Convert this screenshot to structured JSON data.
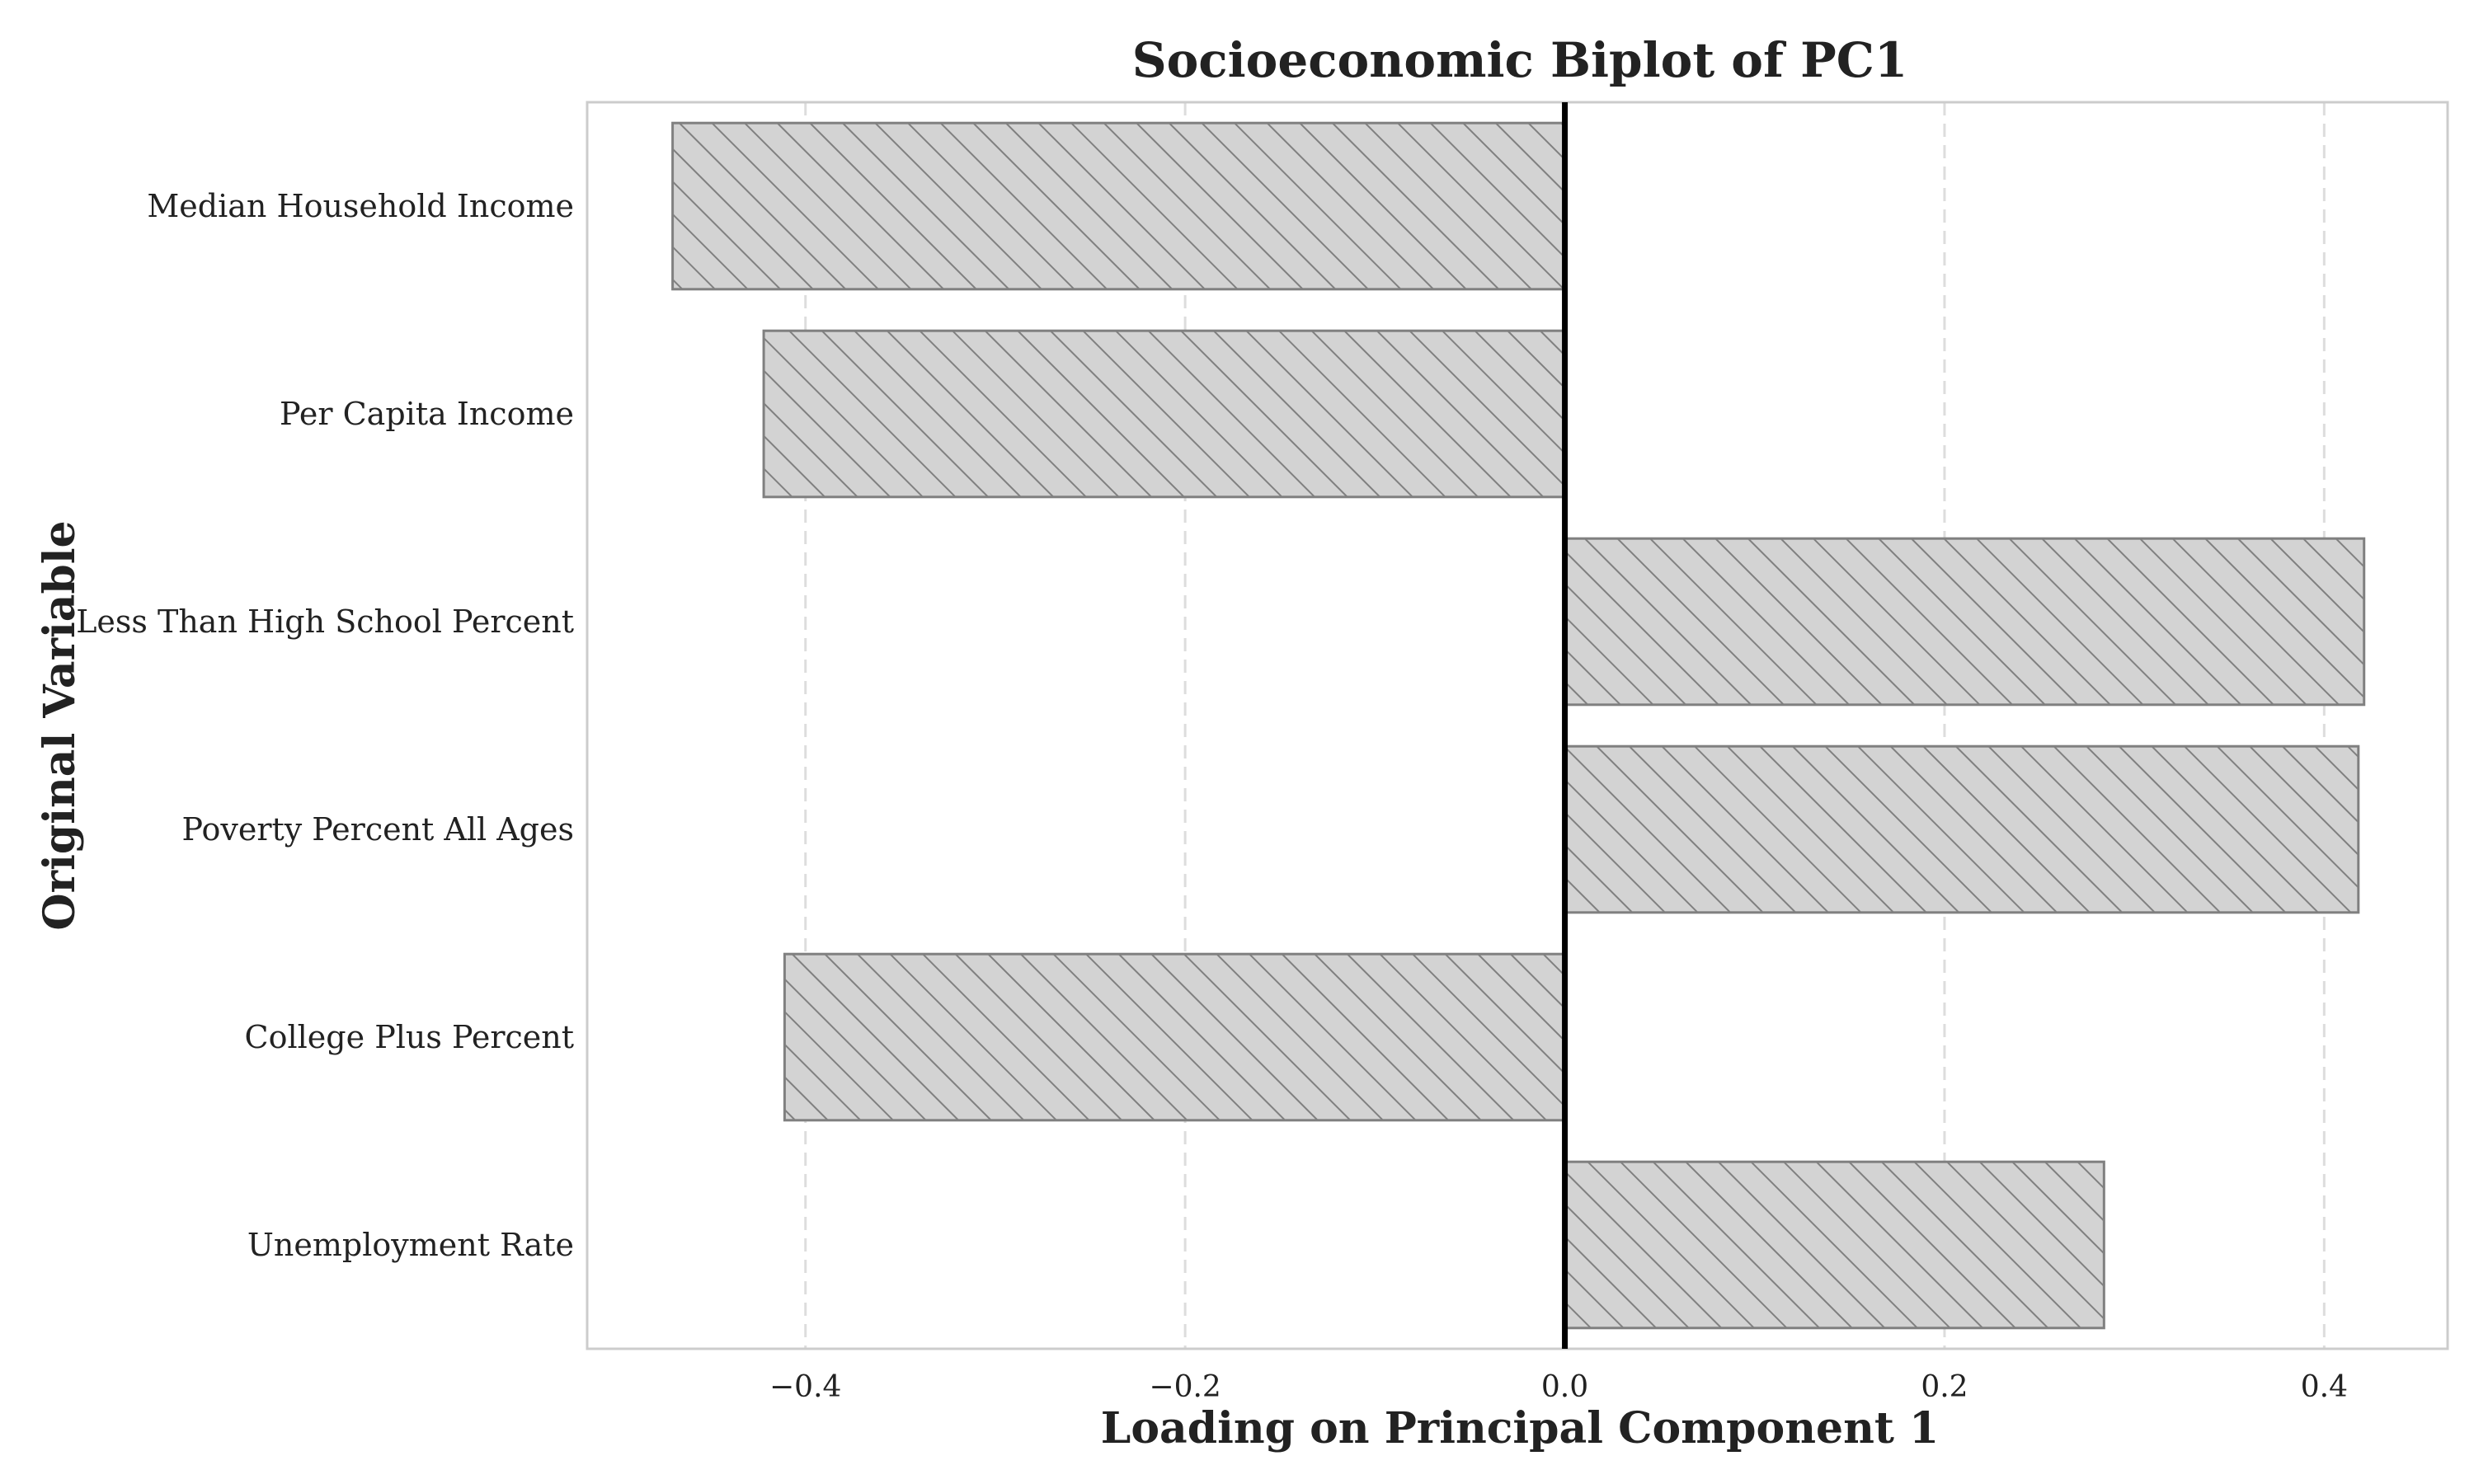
{
  "chart_data": {
    "type": "bar",
    "orientation": "horizontal",
    "title": "Socioeconomic Biplot of PC1",
    "xlabel": "Loading on Principal Component 1",
    "ylabel": "Original Variable",
    "categories": [
      "Median Household Income",
      "Per Capita Income",
      "Less Than High School Percent",
      "Poverty Percent All Ages",
      "College Plus Percent",
      "Unemployment Rate"
    ],
    "values": [
      -0.47,
      -0.422,
      0.421,
      0.418,
      -0.411,
      0.284
    ],
    "xlim": [
      -0.515,
      0.465
    ],
    "xticks": [
      -0.4,
      -0.2,
      0.0,
      0.2,
      0.4
    ],
    "xtick_labels": [
      "−0.4",
      "−0.2",
      "0.0",
      "0.2",
      "0.4"
    ],
    "grid": "x-dashed",
    "legend": "none",
    "bar_fill": "#d3d3d3",
    "bar_edge": "#808080",
    "bar_hatch": "diagonal",
    "zero_line_color": "#000000",
    "frame_color": "#cccccc",
    "text_color": "#222222"
  }
}
